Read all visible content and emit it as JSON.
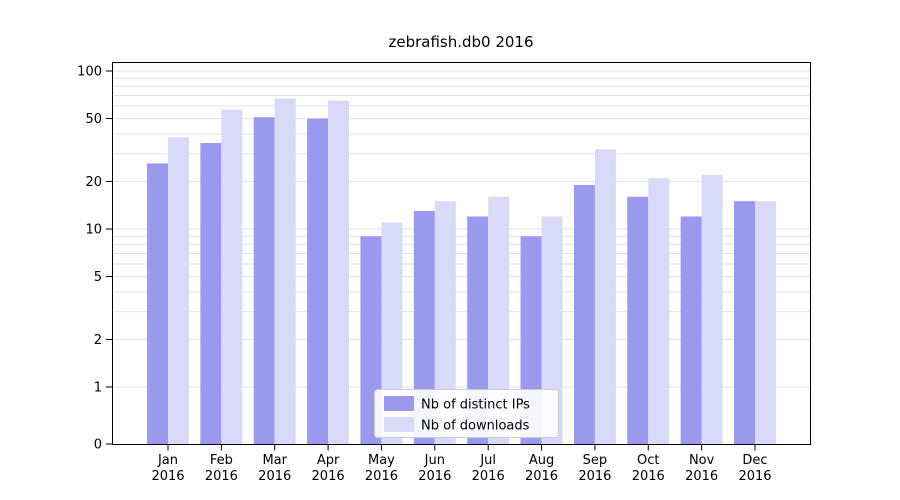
{
  "chart_data": {
    "type": "bar",
    "title": "zebrafish.db0 2016",
    "categories": [
      "Jan",
      "Feb",
      "Mar",
      "Apr",
      "May",
      "Jun",
      "Jul",
      "Aug",
      "Sep",
      "Oct",
      "Nov",
      "Dec"
    ],
    "x_year": "2016",
    "series": [
      {
        "name": "Nb of distinct IPs",
        "color": "#9999ee",
        "values": [
          26,
          35,
          51,
          50,
          9,
          13,
          12,
          9,
          19,
          16,
          12,
          15
        ]
      },
      {
        "name": "Nb of downloads",
        "color": "#d9d9f8",
        "values": [
          38,
          57,
          67,
          65,
          11,
          15,
          16,
          12,
          32,
          21,
          22,
          15
        ]
      }
    ],
    "yscale": "symlog",
    "ylim": [
      0,
      100
    ],
    "yticks": [
      0,
      1,
      2,
      5,
      10,
      20,
      50,
      100
    ],
    "gridlines": [
      1,
      2,
      3,
      4,
      5,
      6,
      7,
      8,
      9,
      10,
      20,
      30,
      40,
      50,
      60,
      70,
      80,
      90,
      100
    ],
    "grid": true,
    "legend_position": "lower center"
  },
  "colors": {
    "background": "#ffffff",
    "axis": "#000000",
    "grid": "#e2e2e2",
    "legend_border": "#cccccc",
    "text": "#000000"
  }
}
